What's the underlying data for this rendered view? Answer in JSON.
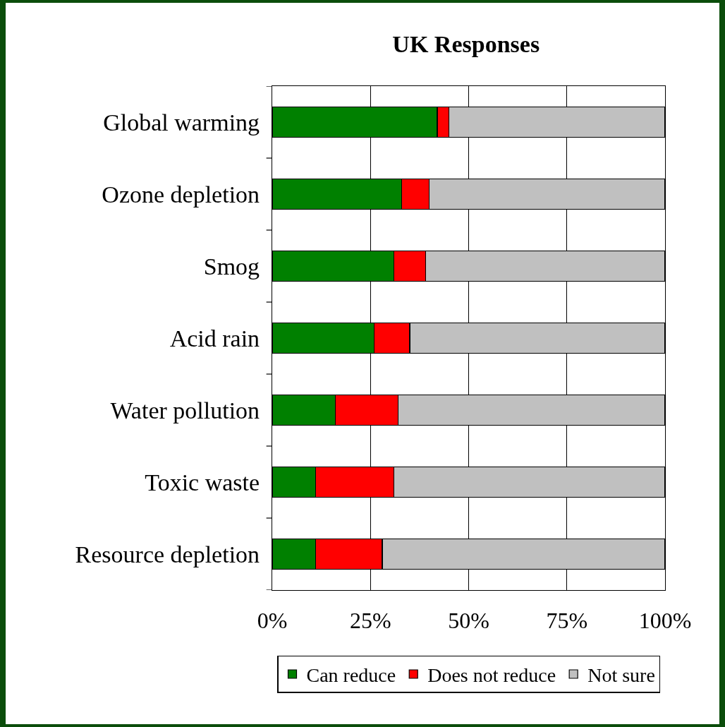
{
  "chart_data": {
    "type": "bar",
    "title": "UK Responses",
    "orientation": "horizontal",
    "stacked": true,
    "categories": [
      "Global warming",
      "Ozone depletion",
      "Smog",
      "Acid rain",
      "Water pollution",
      "Toxic waste",
      "Resource depletion"
    ],
    "series": [
      {
        "name": "Can reduce",
        "color": "#008000",
        "values": [
          42,
          33,
          31,
          26,
          16,
          11,
          11
        ]
      },
      {
        "name": "Does not reduce",
        "color": "#ff0000",
        "values": [
          3,
          7,
          8,
          9,
          16,
          20,
          17
        ]
      },
      {
        "name": "Not sure",
        "color": "#c0c0c0",
        "values": [
          55,
          60,
          61,
          65,
          68,
          69,
          72
        ]
      }
    ],
    "xlim": [
      0,
      100
    ],
    "xticks": [
      {
        "value": 0,
        "label": "0%"
      },
      {
        "value": 25,
        "label": "25%"
      },
      {
        "value": 50,
        "label": "50%"
      },
      {
        "value": 75,
        "label": "75%"
      },
      {
        "value": 100,
        "label": "100%"
      }
    ],
    "grid": "x",
    "legend": "bottom"
  }
}
